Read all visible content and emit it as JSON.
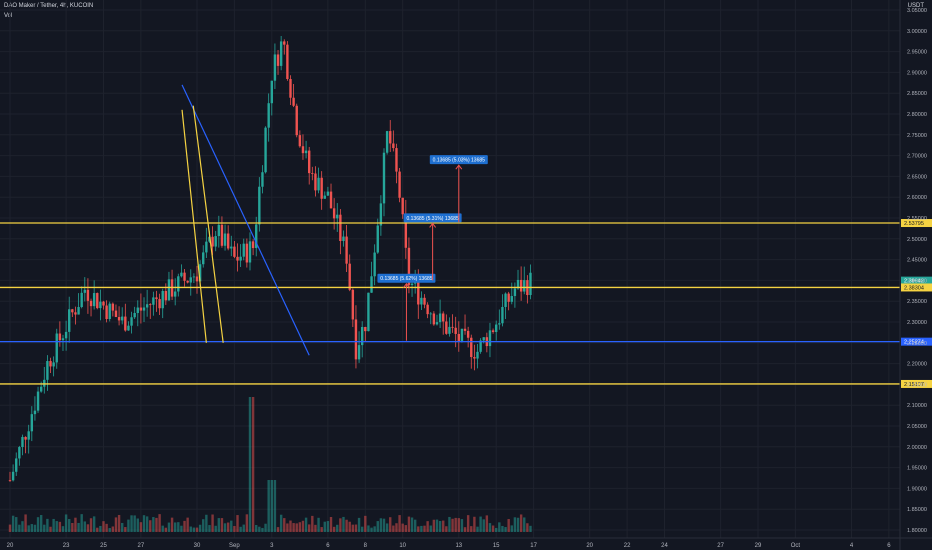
{
  "header": {
    "title": "DAO Maker / Tether, 4h, KUCOIN",
    "volume_label": "Vol",
    "currency": "USDT"
  },
  "chart_data": {
    "type": "candlestick",
    "symbol": "DAO Maker / Tether",
    "interval": "4h",
    "exchange": "KUCOIN",
    "ylim": [
      1.78,
      3.07
    ],
    "y_ticks": [
      "3.05000",
      "3.00000",
      "2.95000",
      "2.90000",
      "2.85000",
      "2.80000",
      "2.75000",
      "2.70000",
      "2.65000",
      "2.60000",
      "2.55000",
      "2.50000",
      "2.45000",
      "2.40000",
      "2.35000",
      "2.30000",
      "2.25000",
      "2.20000",
      "2.15000",
      "2.10000",
      "2.05000",
      "2.00000",
      "1.95000",
      "1.90000",
      "1.85000",
      "1.80000"
    ],
    "x_ticks": [
      "20",
      "23",
      "25",
      "27",
      "30",
      "Sep",
      "3",
      "6",
      "8",
      "10",
      "13",
      "15",
      "17",
      "20",
      "22",
      "24",
      "27",
      "29",
      "Oct",
      "4",
      "6"
    ],
    "horizontal_levels": [
      {
        "price": 2.53795,
        "color": "#f5d342",
        "label": "2.53795"
      },
      {
        "price": 2.39942,
        "color": "#26a69a",
        "label": "2.39942"
      },
      {
        "price": 2.38304,
        "color": "#f5d342",
        "label": "2.38304"
      },
      {
        "price": 2.25274,
        "color": "#2962ff",
        "label": "2.25274"
      },
      {
        "price": 2.15107,
        "color": "#f5d342",
        "label": "2.15107"
      }
    ],
    "price_badge": {
      "value": "2.39942",
      "sub": "00:31:52"
    },
    "trendlines": [
      {
        "color": "#2962ff",
        "from": [
          9.2,
          2.87
        ],
        "to": [
          16.0,
          2.22
        ]
      },
      {
        "color": "#f5d342",
        "from": [
          9.2,
          2.81
        ],
        "to": [
          10.5,
          2.25
        ]
      },
      {
        "color": "#f5d342",
        "from": [
          9.8,
          2.82
        ],
        "to": [
          11.4,
          2.25
        ]
      }
    ],
    "annotations": [
      {
        "text": "0.13685 (5.62%) 13685",
        "arrow_from": 2.255,
        "arrow_to": 2.392,
        "x": 21.2
      },
      {
        "text": "0.13685 (5.31%) 13685",
        "arrow_from": 2.4,
        "arrow_to": 2.537,
        "x": 22.6
      },
      {
        "text": "0.13685 (5.03%) 13685",
        "arrow_from": 2.54,
        "arrow_to": 2.677,
        "x": 24.0
      }
    ],
    "colors": {
      "up": "#26a69a",
      "down": "#ef5350",
      "background": "#131722",
      "grid": "#1e222d"
    }
  }
}
